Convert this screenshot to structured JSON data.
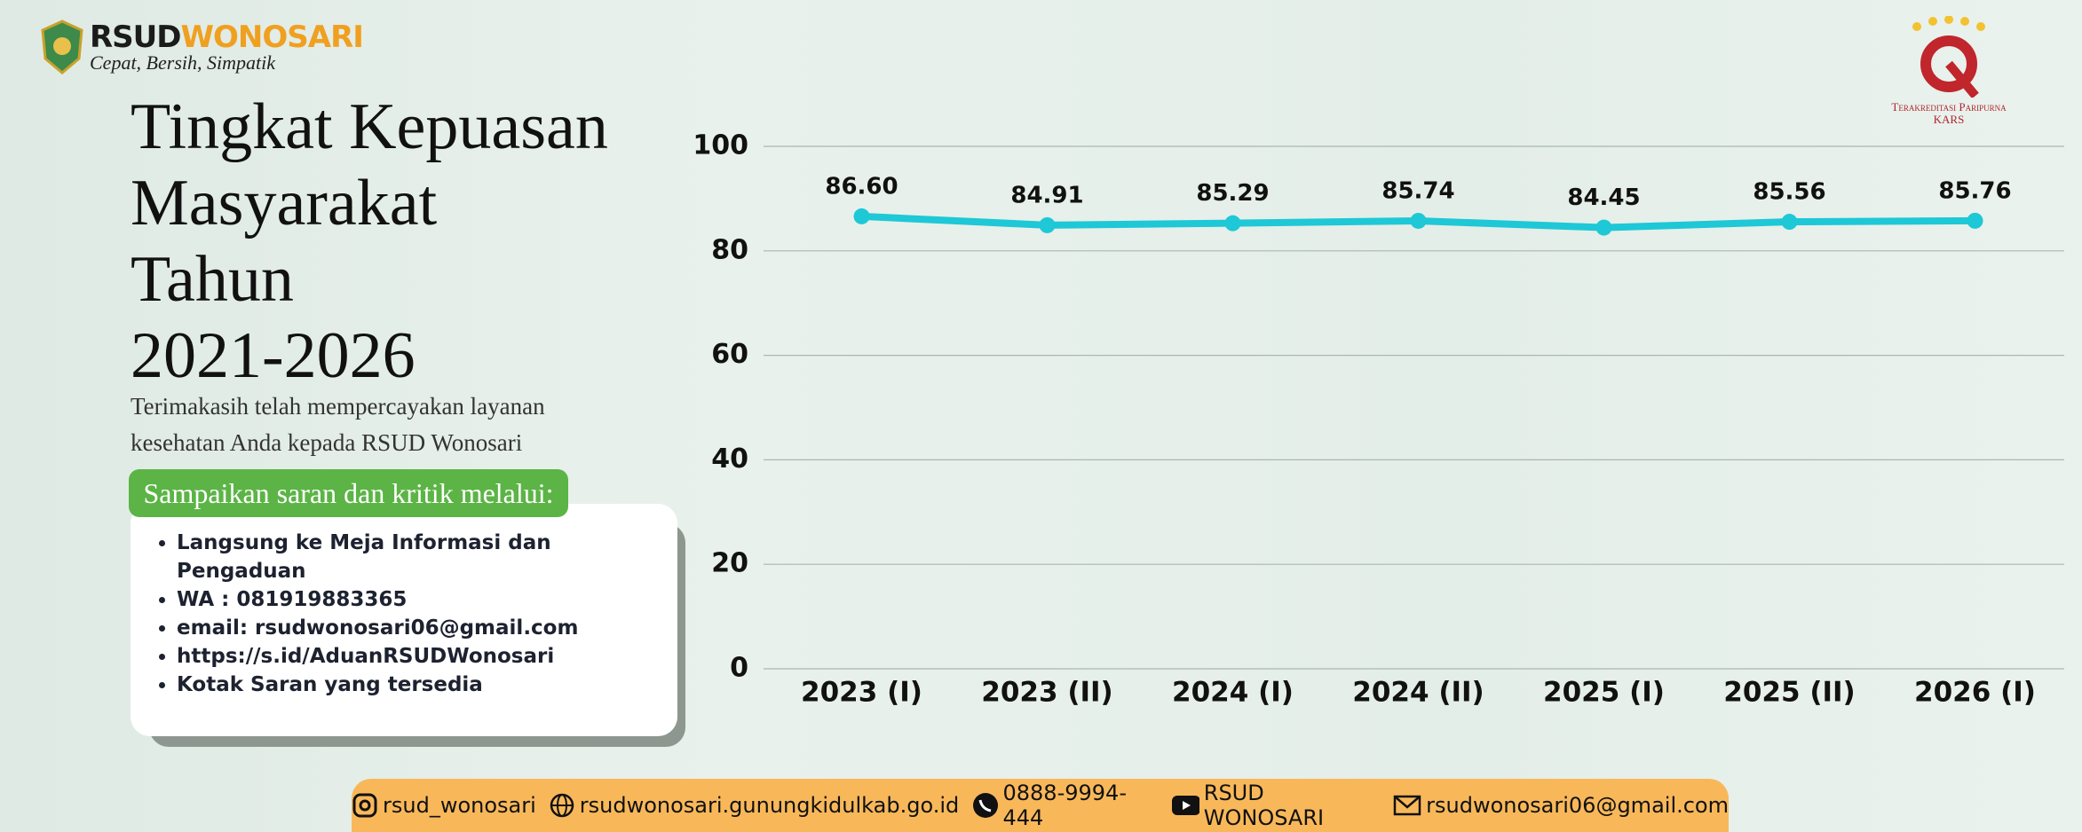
{
  "logo": {
    "name_part1": "RSUD",
    "name_part2": "WONOSARI",
    "tagline": "Cepat, Bersih, Simpatik"
  },
  "accreditation": {
    "line1": "Terakreditasi Paripurna",
    "line2": "KARS"
  },
  "heading": {
    "title_lines": [
      "Tingkat Kepuasan",
      "Masyarakat",
      "Tahun",
      "2021-2026"
    ],
    "subtitle_lines": [
      "Terimakasih telah mempercayakan layanan",
      "kesehatan Anda kepada RSUD Wonosari"
    ]
  },
  "feedback": {
    "label": "Sampaikan saran dan kritik melalui:",
    "items": [
      "Langsung ke Meja Informasi dan Pengaduan",
      "WA : 081919883365",
      "email: rsudwonosari06@gmail.com",
      "https://s.id/AduanRSUDWonosari",
      "Kotak Saran yang tersedia"
    ]
  },
  "footer": {
    "items": [
      "rsud_wonosari",
      "rsudwonosari.gunungkidulkab.go.id",
      "0888-9994-444",
      "RSUD WONOSARI",
      "rsudwonosari06@gmail.com"
    ]
  },
  "chart_data": {
    "type": "line",
    "categories": [
      "2023 (I)",
      "2023 (II)",
      "2024 (I)",
      "2024 (II)",
      "2025 (I)",
      "2025 (II)",
      "2026 (I)"
    ],
    "values": [
      86.6,
      84.91,
      85.29,
      85.74,
      84.45,
      85.56,
      85.76
    ],
    "value_labels": [
      "86.60",
      "84.91",
      "85.29",
      "85.74",
      "84.45",
      "85.56",
      "85.76"
    ],
    "color": "#1ec8d6",
    "ylim": [
      0,
      100
    ],
    "yticks": [
      0,
      20,
      40,
      60,
      80,
      100
    ],
    "grid": true
  }
}
